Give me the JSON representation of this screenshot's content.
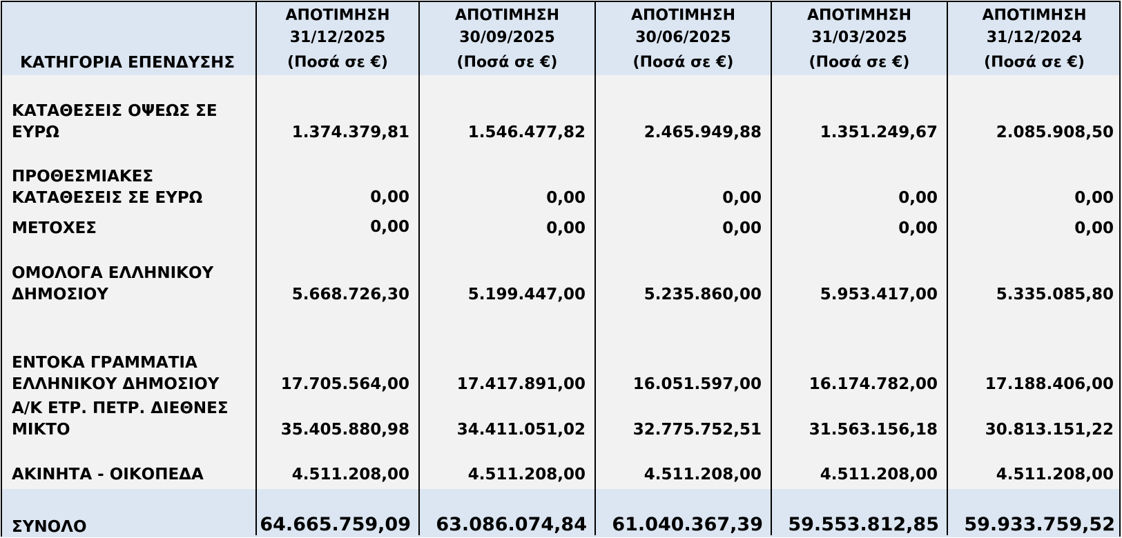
{
  "table": {
    "category_header": "ΚΑΤΗΓΟΡΙΑ ΕΠΕΝΔΥΣΗΣ",
    "columns": [
      {
        "line1": "ΑΠΟΤΙΜΗΣΗ",
        "line2": "31/12/2025",
        "line3": "(Ποσά σε €)"
      },
      {
        "line1": "ΑΠΟΤΙΜΗΣΗ",
        "line2": "30/09/2025",
        "line3": "(Ποσά σε €)"
      },
      {
        "line1": "ΑΠΟΤΙΜΗΣΗ",
        "line2": "30/06/2025",
        "line3": "(Ποσά σε €)"
      },
      {
        "line1": "ΑΠΟΤΙΜΗΣΗ",
        "line2": "31/03/2025",
        "line3": "(Ποσά σε €)"
      },
      {
        "line1": "ΑΠΟΤΙΜΗΣΗ",
        "line2": "31/12/2024",
        "line3": "(Ποσά σε €)"
      }
    ],
    "rows": [
      {
        "label1": "ΚΑΤΑΘΕΣΕΙΣ ΟΨΕΩΣ ΣΕ",
        "label2": "ΕΥΡΩ",
        "values": [
          "1.374.379,81",
          "1.546.477,82",
          "2.465.949,88",
          "1.351.249,67",
          "2.085.908,50"
        ]
      },
      {
        "label1": "ΠΡΟΘΕΣΜΙΑΚΕΣ",
        "label2": "ΚΑΤΑΘΕΣΕΙΣ ΣΕ ΕΥΡΩ",
        "values": [
          "0,00",
          "0,00",
          "0,00",
          "0,00",
          "0,00"
        ]
      },
      {
        "label1": "ΜΕΤΟΧΕΣ",
        "label2": "",
        "values": [
          "0,00",
          "0,00",
          "0,00",
          "0,00",
          "0,00"
        ]
      },
      {
        "label1": "ΟΜΟΛΟΓΑ ΕΛΛΗΝΙΚΟΥ",
        "label2": "ΔΗΜΟΣΙΟΥ",
        "values": [
          "5.668.726,30",
          "5.199.447,00",
          "5.235.860,00",
          "5.953.417,00",
          "5.335.085,80"
        ]
      },
      {
        "label1": "ΕΝΤΟΚΑ ΓΡΑΜΜΑΤΙΑ",
        "label2": "ΕΛΛΗΝΙΚΟΥ ΔΗΜΟΣΙΟΥ",
        "values": [
          "17.705.564,00",
          "17.417.891,00",
          "16.051.597,00",
          "16.174.782,00",
          "17.188.406,00"
        ]
      },
      {
        "label1": "Α/Κ ΕΤΡ. ΠΕΤΡ. ΔΙΕΘΝΕΣ",
        "label2": "ΜΙΚΤΟ",
        "values": [
          "35.405.880,98",
          "34.411.051,02",
          "32.775.752,51",
          "31.563.156,18",
          "30.813.151,22"
        ]
      },
      {
        "label1": "ΑΚΙΝΗΤΑ - ΟΙΚΟΠΕΔΑ",
        "label2": "",
        "values": [
          "4.511.208,00",
          "4.511.208,00",
          "4.511.208,00",
          "4.511.208,00",
          "4.511.208,00"
        ]
      }
    ],
    "total": {
      "label": "ΣΥΝΟΛΟ",
      "values": [
        "64.665.759,09",
        "63.086.074,84",
        "61.040.367,39",
        "59.553.812,85",
        "59.933.759,52"
      ]
    }
  },
  "colors": {
    "header_band": "#dce6f2",
    "body_background": "#f2f2f2",
    "grid_line": "#000000"
  }
}
